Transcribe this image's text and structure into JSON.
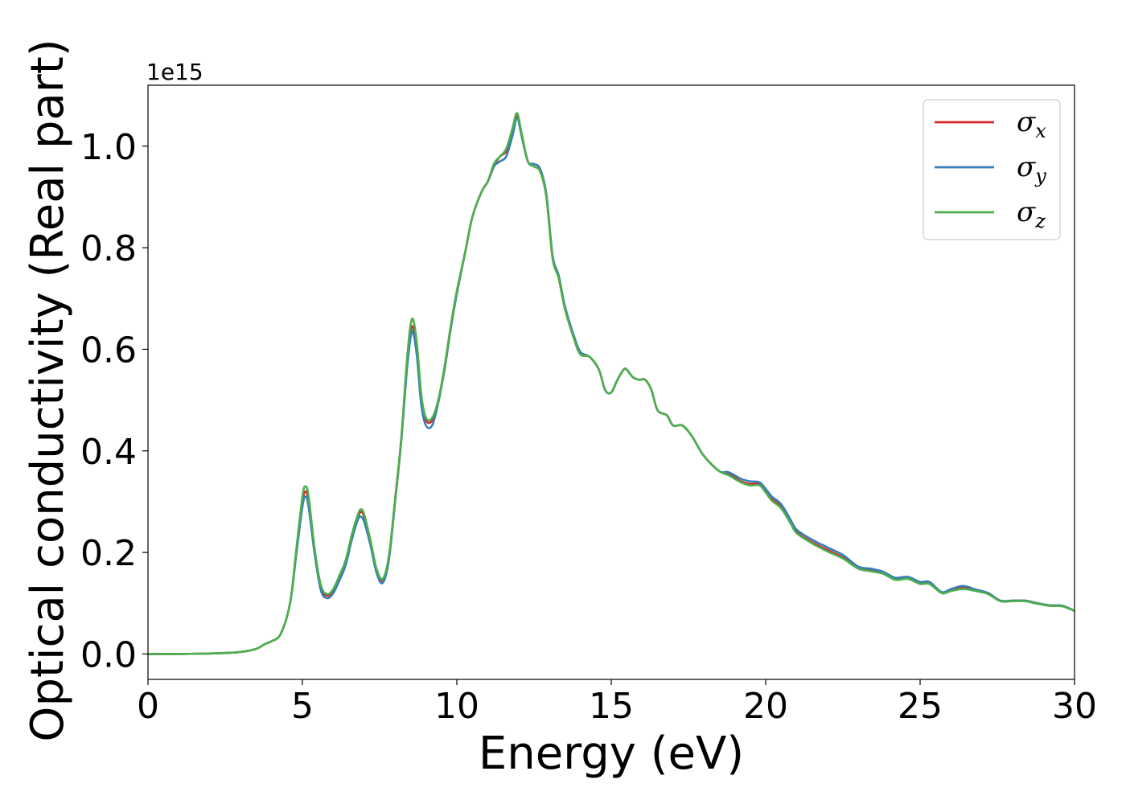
{
  "chart_data": {
    "type": "line",
    "title": "",
    "xlabel": "Energy (eV)",
    "ylabel": "Optical conductivity (Real part)",
    "y_offset_label": "1e15",
    "xlim": [
      0,
      30
    ],
    "ylim": [
      -0.05,
      1.12
    ],
    "xticks": [
      0,
      5,
      10,
      15,
      20,
      25,
      30
    ],
    "yticks": [
      0.0,
      0.2,
      0.4,
      0.6,
      0.8,
      1.0
    ],
    "xtick_labels": [
      "0",
      "5",
      "10",
      "15",
      "20",
      "25",
      "30"
    ],
    "ytick_labels": [
      "0.0",
      "0.2",
      "0.4",
      "0.6",
      "0.8",
      "1.0"
    ],
    "grid": false,
    "legend_position": "top-right",
    "x": [
      0,
      1,
      2,
      2.5,
      3,
      3.5,
      3.8,
      4.0,
      4.3,
      4.6,
      4.8,
      5.0,
      5.1,
      5.2,
      5.4,
      5.6,
      5.8,
      6.0,
      6.2,
      6.4,
      6.6,
      6.8,
      6.9,
      7.0,
      7.2,
      7.4,
      7.6,
      7.8,
      8.0,
      8.2,
      8.4,
      8.55,
      8.7,
      8.85,
      9.0,
      9.2,
      9.4,
      9.6,
      9.8,
      10.0,
      10.3,
      10.5,
      10.8,
      11.0,
      11.2,
      11.4,
      11.6,
      11.8,
      11.95,
      12.1,
      12.3,
      12.5,
      12.7,
      12.9,
      13.1,
      13.3,
      13.5,
      13.8,
      14.0,
      14.3,
      14.6,
      14.8,
      15.0,
      15.2,
      15.4,
      15.5,
      15.7,
      15.9,
      16.1,
      16.3,
      16.5,
      16.8,
      17.0,
      17.3,
      17.6,
      18.0,
      18.5,
      18.8,
      19.2,
      19.5,
      19.8,
      20.0,
      20.2,
      20.5,
      20.8,
      21.0,
      21.5,
      22.0,
      22.5,
      23.0,
      23.4,
      23.8,
      24.2,
      24.6,
      25.0,
      25.3,
      25.7,
      26.0,
      26.4,
      26.8,
      27.2,
      27.6,
      28.0,
      28.4,
      28.8,
      29.2,
      29.6,
      30.0
    ],
    "series": [
      {
        "name": "σx",
        "color": "#d62728",
        "values": [
          0.0,
          0.0,
          0.001,
          0.002,
          0.004,
          0.01,
          0.02,
          0.025,
          0.04,
          0.1,
          0.2,
          0.3,
          0.32,
          0.3,
          0.2,
          0.13,
          0.115,
          0.125,
          0.15,
          0.18,
          0.23,
          0.27,
          0.28,
          0.27,
          0.22,
          0.165,
          0.145,
          0.19,
          0.3,
          0.42,
          0.58,
          0.645,
          0.6,
          0.5,
          0.46,
          0.46,
          0.5,
          0.56,
          0.64,
          0.71,
          0.8,
          0.86,
          0.91,
          0.93,
          0.96,
          0.98,
          0.99,
          1.03,
          1.06,
          1.02,
          0.97,
          0.96,
          0.95,
          0.9,
          0.78,
          0.74,
          0.68,
          0.62,
          0.59,
          0.585,
          0.56,
          0.52,
          0.515,
          0.54,
          0.56,
          0.56,
          0.545,
          0.54,
          0.54,
          0.52,
          0.48,
          0.47,
          0.45,
          0.45,
          0.43,
          0.39,
          0.36,
          0.355,
          0.34,
          0.335,
          0.335,
          0.32,
          0.305,
          0.29,
          0.26,
          0.24,
          0.22,
          0.205,
          0.19,
          0.17,
          0.165,
          0.16,
          0.148,
          0.15,
          0.14,
          0.14,
          0.12,
          0.125,
          0.13,
          0.125,
          0.12,
          0.105,
          0.105,
          0.105,
          0.1,
          0.095,
          0.095,
          0.085
        ]
      },
      {
        "name": "σy",
        "color": "#377eb8",
        "values": [
          0.0,
          0.0,
          0.001,
          0.002,
          0.004,
          0.01,
          0.02,
          0.025,
          0.04,
          0.1,
          0.195,
          0.29,
          0.31,
          0.29,
          0.195,
          0.125,
          0.11,
          0.12,
          0.145,
          0.175,
          0.225,
          0.265,
          0.27,
          0.26,
          0.215,
          0.16,
          0.14,
          0.185,
          0.3,
          0.42,
          0.57,
          0.635,
          0.59,
          0.49,
          0.45,
          0.45,
          0.495,
          0.56,
          0.64,
          0.71,
          0.8,
          0.86,
          0.91,
          0.93,
          0.96,
          0.97,
          0.98,
          1.02,
          1.055,
          1.02,
          0.97,
          0.965,
          0.955,
          0.905,
          0.785,
          0.745,
          0.685,
          0.625,
          0.595,
          0.585,
          0.56,
          0.52,
          0.515,
          0.54,
          0.56,
          0.56,
          0.545,
          0.54,
          0.54,
          0.52,
          0.48,
          0.47,
          0.45,
          0.45,
          0.43,
          0.39,
          0.36,
          0.358,
          0.345,
          0.34,
          0.338,
          0.325,
          0.31,
          0.295,
          0.265,
          0.245,
          0.225,
          0.21,
          0.195,
          0.172,
          0.168,
          0.162,
          0.15,
          0.152,
          0.142,
          0.142,
          0.122,
          0.128,
          0.134,
          0.127,
          0.12,
          0.105,
          0.105,
          0.105,
          0.1,
          0.096,
          0.095,
          0.085
        ]
      },
      {
        "name": "σz",
        "color": "#4daf4a",
        "values": [
          0.0,
          0.0,
          0.001,
          0.002,
          0.004,
          0.01,
          0.02,
          0.025,
          0.04,
          0.1,
          0.205,
          0.31,
          0.33,
          0.31,
          0.205,
          0.135,
          0.118,
          0.128,
          0.155,
          0.185,
          0.235,
          0.275,
          0.285,
          0.275,
          0.225,
          0.168,
          0.148,
          0.193,
          0.305,
          0.425,
          0.59,
          0.66,
          0.615,
          0.51,
          0.465,
          0.465,
          0.5,
          0.565,
          0.645,
          0.715,
          0.8,
          0.86,
          0.91,
          0.93,
          0.965,
          0.98,
          0.995,
          1.035,
          1.065,
          1.025,
          0.97,
          0.96,
          0.95,
          0.9,
          0.78,
          0.74,
          0.68,
          0.62,
          0.59,
          0.585,
          0.56,
          0.52,
          0.515,
          0.54,
          0.56,
          0.56,
          0.545,
          0.54,
          0.54,
          0.52,
          0.48,
          0.47,
          0.45,
          0.45,
          0.43,
          0.39,
          0.36,
          0.352,
          0.338,
          0.332,
          0.332,
          0.318,
          0.302,
          0.287,
          0.258,
          0.238,
          0.218,
          0.202,
          0.188,
          0.168,
          0.163,
          0.158,
          0.146,
          0.148,
          0.138,
          0.138,
          0.12,
          0.124,
          0.128,
          0.124,
          0.118,
          0.104,
          0.104,
          0.104,
          0.099,
          0.095,
          0.094,
          0.085
        ]
      }
    ]
  }
}
